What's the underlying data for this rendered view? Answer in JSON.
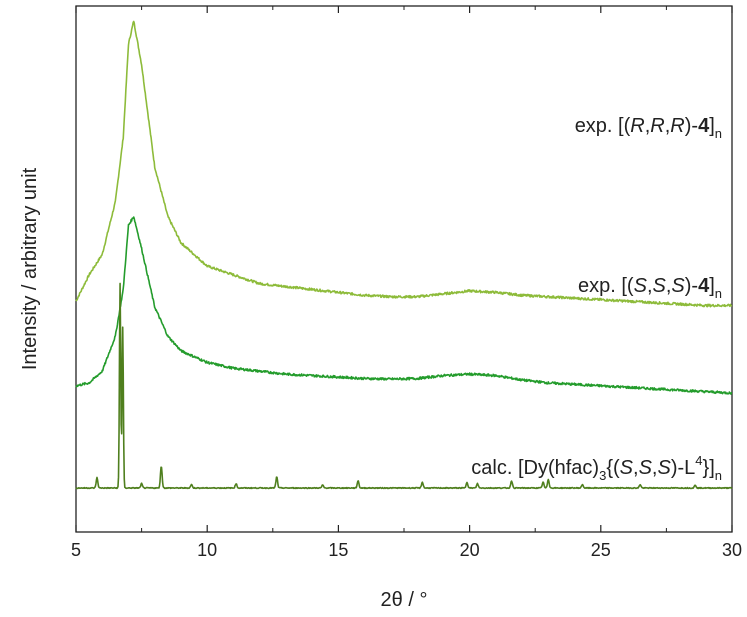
{
  "chart_data": {
    "type": "line",
    "xlabel": "2θ / °",
    "ylabel": "Intensity / arbitrary unit",
    "xlim": [
      5,
      30
    ],
    "xticks": [
      5,
      10,
      15,
      20,
      25,
      30
    ],
    "grid": false,
    "legend": "none",
    "series": [
      {
        "label_parts": [
          {
            "t": "exp. [(",
            "s": "n"
          },
          {
            "t": "R",
            "s": "i"
          },
          {
            "t": ",",
            "s": "n"
          },
          {
            "t": "R",
            "s": "i"
          },
          {
            "t": ",",
            "s": "n"
          },
          {
            "t": "R",
            "s": "i"
          },
          {
            "t": ")-",
            "s": "n"
          },
          {
            "t": "4",
            "s": "b"
          },
          {
            "t": "]",
            "s": "n"
          },
          {
            "t": "n",
            "s": "sub"
          }
        ],
        "color": "#8dbb3a",
        "baseline": 0.62,
        "points": [
          [
            5,
            0.64
          ],
          [
            5.5,
            0.73
          ],
          [
            6,
            0.8
          ],
          [
            6.5,
            0.98
          ],
          [
            6.8,
            1.2
          ],
          [
            7,
            1.52
          ],
          [
            7.2,
            1.6
          ],
          [
            7.5,
            1.45
          ],
          [
            8,
            1.1
          ],
          [
            8.5,
            0.93
          ],
          [
            9,
            0.84
          ],
          [
            10,
            0.76
          ],
          [
            11,
            0.73
          ],
          [
            12,
            0.7
          ],
          [
            13,
            0.69
          ],
          [
            14,
            0.68
          ],
          [
            15,
            0.67
          ],
          [
            16,
            0.66
          ],
          [
            17,
            0.655
          ],
          [
            18,
            0.655
          ],
          [
            19,
            0.665
          ],
          [
            20,
            0.675
          ],
          [
            21,
            0.67
          ],
          [
            22,
            0.66
          ],
          [
            23,
            0.655
          ],
          [
            24,
            0.65
          ],
          [
            25,
            0.645
          ],
          [
            26,
            0.64
          ],
          [
            27,
            0.635
          ],
          [
            28,
            0.63
          ],
          [
            29,
            0.625
          ],
          [
            30,
            0.625
          ]
        ]
      },
      {
        "label_parts": [
          {
            "t": "exp. [(",
            "s": "n"
          },
          {
            "t": "S",
            "s": "i"
          },
          {
            "t": ",",
            "s": "n"
          },
          {
            "t": "S",
            "s": "i"
          },
          {
            "t": ",",
            "s": "n"
          },
          {
            "t": "S",
            "s": "i"
          },
          {
            "t": ")-",
            "s": "n"
          },
          {
            "t": "4",
            "s": "b"
          },
          {
            "t": "]",
            "s": "n"
          },
          {
            "t": "n",
            "s": "sub"
          }
        ],
        "color": "#249c2c",
        "baseline": 0.32,
        "points": [
          [
            5,
            0.35
          ],
          [
            5.5,
            0.36
          ],
          [
            6,
            0.4
          ],
          [
            6.5,
            0.52
          ],
          [
            6.8,
            0.68
          ],
          [
            7,
            0.9
          ],
          [
            7.2,
            0.93
          ],
          [
            7.5,
            0.82
          ],
          [
            8,
            0.62
          ],
          [
            8.5,
            0.52
          ],
          [
            9,
            0.47
          ],
          [
            10,
            0.43
          ],
          [
            11,
            0.41
          ],
          [
            12,
            0.4
          ],
          [
            13,
            0.39
          ],
          [
            14,
            0.385
          ],
          [
            15,
            0.38
          ],
          [
            16,
            0.375
          ],
          [
            17,
            0.373
          ],
          [
            18,
            0.375
          ],
          [
            19,
            0.385
          ],
          [
            20,
            0.39
          ],
          [
            21,
            0.385
          ],
          [
            22,
            0.37
          ],
          [
            23,
            0.36
          ],
          [
            24,
            0.355
          ],
          [
            25,
            0.35
          ],
          [
            26,
            0.345
          ],
          [
            27,
            0.34
          ],
          [
            28,
            0.335
          ],
          [
            29,
            0.33
          ],
          [
            30,
            0.325
          ]
        ]
      },
      {
        "label_parts": [
          {
            "t": "calc. [Dy(hfac)",
            "s": "n"
          },
          {
            "t": "3",
            "s": "sub"
          },
          {
            "t": "{(",
            "s": "n"
          },
          {
            "t": "S",
            "s": "i"
          },
          {
            "t": ",",
            "s": "n"
          },
          {
            "t": "S",
            "s": "i"
          },
          {
            "t": ",",
            "s": "n"
          },
          {
            "t": "S",
            "s": "i"
          },
          {
            "t": ")-L",
            "s": "n"
          },
          {
            "t": "4",
            "s": "sup"
          },
          {
            "t": "}]",
            "s": "n"
          },
          {
            "t": "n",
            "s": "sub"
          }
        ],
        "color": "#4f7f1e",
        "baseline": 0.0,
        "peaks": [
          [
            5.8,
            0.035
          ],
          [
            6.68,
            0.7
          ],
          [
            6.78,
            0.55
          ],
          [
            7.5,
            0.015
          ],
          [
            8.25,
            0.075
          ],
          [
            9.4,
            0.012
          ],
          [
            11.1,
            0.015
          ],
          [
            12.65,
            0.038
          ],
          [
            14.4,
            0.01
          ],
          [
            15.75,
            0.025
          ],
          [
            18.2,
            0.02
          ],
          [
            19.9,
            0.02
          ],
          [
            20.3,
            0.015
          ],
          [
            21.6,
            0.025
          ],
          [
            22.8,
            0.02
          ],
          [
            23.0,
            0.03
          ],
          [
            24.3,
            0.012
          ],
          [
            26.5,
            0.012
          ],
          [
            28.6,
            0.01
          ]
        ]
      }
    ]
  }
}
